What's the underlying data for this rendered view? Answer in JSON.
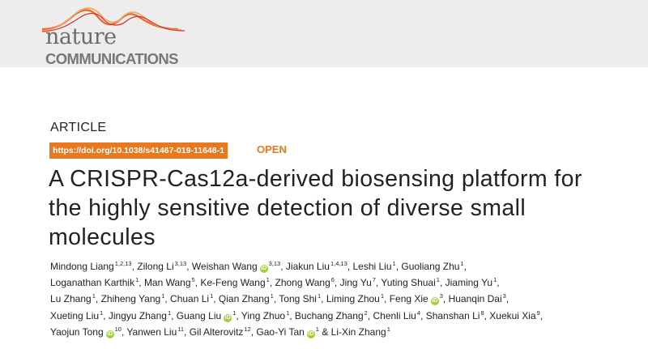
{
  "journal": {
    "name_top": "nature",
    "name_bottom": "COMMUNICATIONS"
  },
  "article": {
    "type": "ARTICLE",
    "doi": "https://doi.org/10.1038/s41467-019-11648-1",
    "access": "OPEN",
    "title_lines": [
      "A CRISPR-Cas12a-derived biosensing platform for",
      "the highly sensitive detection of diverse small",
      "molecules"
    ]
  },
  "author_lines": [
    [
      {
        "name": "Mindong Liang",
        "aff": "1,2,13"
      },
      {
        "name": "Zilong Li",
        "aff": "3,13"
      },
      {
        "name": "Weishan Wang",
        "aff": "3,13",
        "orcid": true
      },
      {
        "name": "Jiakun Liu",
        "aff": "1,4,13"
      },
      {
        "name": "Leshi Liu",
        "aff": "1"
      },
      {
        "name": "Guoliang Zhu",
        "aff": "1"
      }
    ],
    [
      {
        "name": "Loganathan Karthik",
        "aff": "1"
      },
      {
        "name": "Man Wang",
        "aff": "5"
      },
      {
        "name": "Ke-Feng Wang",
        "aff": "1"
      },
      {
        "name": "Zhong Wang",
        "aff": "6"
      },
      {
        "name": "Jing Yu",
        "aff": "7"
      },
      {
        "name": "Yuting Shuai",
        "aff": "1"
      },
      {
        "name": "Jiaming Yu",
        "aff": "1"
      }
    ],
    [
      {
        "name": "Lu Zhang",
        "aff": "1"
      },
      {
        "name": "Zhiheng Yang",
        "aff": "1"
      },
      {
        "name": "Chuan Li",
        "aff": "1"
      },
      {
        "name": "Qian Zhang",
        "aff": "1"
      },
      {
        "name": "Tong Shi",
        "aff": "1"
      },
      {
        "name": "Liming Zhou",
        "aff": "1"
      },
      {
        "name": "Feng Xie",
        "aff": "3",
        "orcid": true
      },
      {
        "name": "Huanqin Dai",
        "aff": "3"
      }
    ],
    [
      {
        "name": "Xueting Liu",
        "aff": "1"
      },
      {
        "name": "Jingyu Zhang",
        "aff": "1"
      },
      {
        "name": "Guang Liu",
        "aff": "1",
        "orcid": true
      },
      {
        "name": "Ying Zhuo",
        "aff": "1"
      },
      {
        "name": "Buchang Zhang",
        "aff": "2"
      },
      {
        "name": "Chenli Liu",
        "aff": "4"
      },
      {
        "name": "Shanshan Li",
        "aff": "8"
      },
      {
        "name": "Xuekui Xia",
        "aff": "9"
      }
    ],
    [
      {
        "name": "Yaojun Tong",
        "aff": "10",
        "orcid": true
      },
      {
        "name": "Yanwen Liu",
        "aff": "11"
      },
      {
        "name": "Gil Alterovitz",
        "aff": "12"
      },
      {
        "name": "Gao-Yi Tan",
        "aff": "1",
        "orcid": true
      },
      {
        "name": "Li-Xin Zhang",
        "aff": "1",
        "prefix": "& "
      }
    ]
  ],
  "orcid_glyph": "iD",
  "colors": {
    "accent": "#e8771e",
    "orcid": "#a6ce39",
    "header_bg": "#ededed"
  }
}
